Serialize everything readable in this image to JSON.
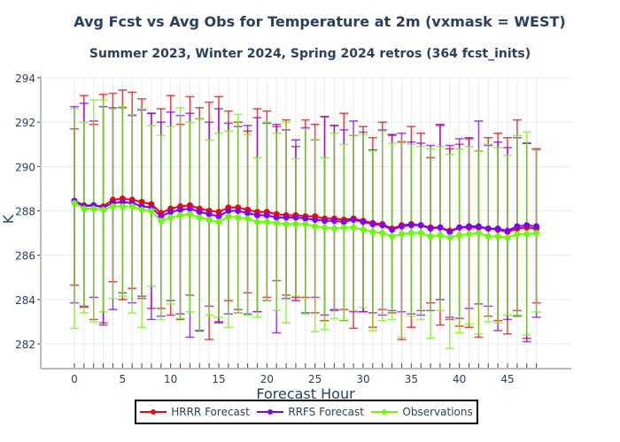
{
  "chart_data": {
    "type": "line",
    "title": "Avg Fcst vs Avg Obs for Temperature at 2m (vxmask = WEST)",
    "subtitle": "Summer 2023, Winter 2024, Spring 2024 retros (364 fcst_inits)",
    "xlabel": "Forecast Hour",
    "ylabel": "K",
    "xlim": [
      -3.5,
      50.5
    ],
    "ylim": [
      281,
      294
    ],
    "xticks": [
      0,
      5,
      10,
      15,
      20,
      25,
      30,
      35,
      40,
      45
    ],
    "yticks": [
      282,
      284,
      286,
      288,
      290,
      292,
      294
    ],
    "grid": true,
    "legend_position": "bottom-center",
    "x": [
      0,
      1,
      2,
      3,
      4,
      5,
      6,
      7,
      8,
      9,
      10,
      11,
      12,
      13,
      14,
      15,
      16,
      17,
      18,
      19,
      20,
      21,
      22,
      23,
      24,
      25,
      26,
      27,
      28,
      29,
      30,
      31,
      32,
      33,
      34,
      35,
      36,
      37,
      38,
      39,
      40,
      41,
      42,
      43,
      44,
      45,
      46,
      47,
      48
    ],
    "series": [
      {
        "name": "HRRR Forecast",
        "color": "#ff0000",
        "values": [
          288.45,
          288.25,
          288.25,
          288.2,
          288.5,
          288.55,
          288.5,
          288.4,
          288.3,
          287.9,
          288.1,
          288.2,
          288.25,
          288.1,
          288.0,
          287.95,
          288.15,
          288.15,
          288.05,
          287.95,
          287.95,
          287.85,
          287.8,
          287.8,
          287.75,
          287.75,
          287.65,
          287.65,
          287.6,
          287.65,
          287.55,
          287.45,
          287.4,
          287.2,
          287.35,
          287.4,
          287.35,
          287.25,
          287.25,
          287.1,
          287.25,
          287.25,
          287.25,
          287.2,
          287.15,
          287.05,
          287.2,
          287.25,
          287.2
        ],
        "upper": [
          291.7,
          293.2,
          291.9,
          293.25,
          293.3,
          293.45,
          293.35,
          293.05,
          292.4,
          292.6,
          293.2,
          291.9,
          293.15,
          292.65,
          292.9,
          293.15,
          292.5,
          292.0,
          291.6,
          292.6,
          292.5,
          291.8,
          292.1,
          290.9,
          292.1,
          291.9,
          292.25,
          291.85,
          292.4,
          291.4,
          291.8,
          291.3,
          292.0,
          291.4,
          291.1,
          291.8,
          291.5,
          290.4,
          291.85,
          290.8,
          291.0,
          291.25,
          290.7,
          291.3,
          291.5,
          291.3,
          292.1,
          291.05,
          290.8
        ],
        "lower": [
          284.65,
          283.7,
          283.1,
          282.95,
          284.8,
          284.0,
          284.5,
          284.05,
          283.6,
          283.6,
          283.3,
          283.1,
          284.2,
          282.6,
          282.2,
          283.0,
          283.95,
          283.4,
          284.3,
          283.45,
          284.1,
          284.85,
          284.2,
          284.1,
          284.1,
          283.4,
          283.05,
          283.5,
          283.55,
          282.7,
          283.45,
          282.75,
          283.55,
          283.4,
          282.2,
          282.75,
          283.5,
          283.85,
          282.85,
          283.1,
          282.8,
          282.75,
          282.3,
          283.25,
          283.05,
          282.45,
          283.5,
          282.25,
          283.85
        ]
      },
      {
        "name": "RRFS Forecast",
        "color": "#8000ff",
        "values": [
          288.45,
          288.2,
          288.25,
          288.15,
          288.35,
          288.4,
          288.35,
          288.2,
          288.15,
          287.75,
          287.95,
          288.05,
          288.1,
          287.95,
          287.85,
          287.75,
          288.0,
          288.0,
          287.9,
          287.8,
          287.8,
          287.7,
          287.7,
          287.7,
          287.65,
          287.6,
          287.55,
          287.55,
          287.5,
          287.6,
          287.5,
          287.4,
          287.35,
          287.15,
          287.3,
          287.35,
          287.35,
          287.2,
          287.25,
          287.05,
          287.25,
          287.3,
          287.3,
          287.2,
          287.2,
          287.1,
          287.3,
          287.35,
          287.3
        ],
        "upper": [
          292.7,
          292.85,
          292.05,
          292.7,
          292.65,
          292.65,
          292.3,
          292.55,
          292.4,
          292.0,
          292.45,
          292.3,
          292.4,
          292.15,
          292.0,
          292.6,
          291.95,
          291.8,
          291.85,
          292.2,
          291.95,
          291.9,
          291.65,
          291.2,
          291.75,
          291.2,
          292.25,
          291.85,
          291.65,
          292.05,
          291.55,
          290.75,
          291.65,
          291.45,
          291.5,
          291.1,
          291.05,
          290.95,
          291.9,
          290.95,
          291.25,
          291.3,
          292.05,
          290.95,
          291.1,
          290.85,
          291.3,
          291.05,
          290.75
        ],
        "lower": [
          283.85,
          283.65,
          284.1,
          282.85,
          283.55,
          284.3,
          283.85,
          284.15,
          283.1,
          283.25,
          283.95,
          283.35,
          282.3,
          282.6,
          283.7,
          282.95,
          283.35,
          283.55,
          283.35,
          283.45,
          283.95,
          282.5,
          284.05,
          283.95,
          283.4,
          284.1,
          283.3,
          283.55,
          283.05,
          283.45,
          283.45,
          283.4,
          283.3,
          283.5,
          283.45,
          283.35,
          283.3,
          283.5,
          284.0,
          283.2,
          283.15,
          283.6,
          283.8,
          283.7,
          282.6,
          283.1,
          283.25,
          282.1,
          283.2
        ]
      },
      {
        "name": "Observations",
        "color": "#66ff00",
        "values": [
          288.35,
          288.1,
          288.1,
          288.05,
          288.2,
          288.2,
          288.2,
          288.05,
          288.0,
          287.55,
          287.7,
          287.8,
          287.85,
          287.7,
          287.6,
          287.5,
          287.75,
          287.7,
          287.65,
          287.5,
          287.5,
          287.45,
          287.4,
          287.4,
          287.4,
          287.3,
          287.25,
          287.2,
          287.25,
          287.25,
          287.15,
          287.05,
          287.0,
          286.85,
          286.95,
          287.0,
          287.0,
          286.85,
          286.9,
          286.8,
          286.9,
          286.95,
          287.0,
          286.85,
          286.85,
          286.8,
          286.95,
          286.95,
          287.0
        ],
        "upper": [
          292.6,
          292.0,
          293.0,
          293.0,
          292.6,
          292.7,
          292.35,
          292.6,
          291.85,
          291.4,
          291.8,
          292.65,
          292.0,
          292.15,
          291.2,
          291.5,
          291.6,
          292.35,
          291.45,
          290.4,
          292.0,
          291.5,
          292.0,
          290.35,
          291.7,
          291.2,
          290.4,
          291.5,
          291.0,
          291.4,
          291.45,
          290.7,
          291.6,
          291.05,
          291.15,
          291.0,
          290.9,
          290.8,
          290.9,
          290.55,
          290.8,
          290.9,
          290.7,
          291.0,
          290.85,
          290.5,
          291.4,
          291.55,
          290.75
        ],
        "lower": [
          282.7,
          283.4,
          283.0,
          283.45,
          284.05,
          284.15,
          283.4,
          282.75,
          284.6,
          283.1,
          283.8,
          283.15,
          283.45,
          282.55,
          283.3,
          283.2,
          282.75,
          283.4,
          283.3,
          283.2,
          283.95,
          283.5,
          282.95,
          284.15,
          283.35,
          282.55,
          282.65,
          283.15,
          283.05,
          283.5,
          283.65,
          282.6,
          283.05,
          283.1,
          282.3,
          283.25,
          283.1,
          282.25,
          283.5,
          281.8,
          282.5,
          282.9,
          282.45,
          283.0,
          282.95,
          283.3,
          283.3,
          282.4,
          283.45
        ]
      }
    ]
  }
}
